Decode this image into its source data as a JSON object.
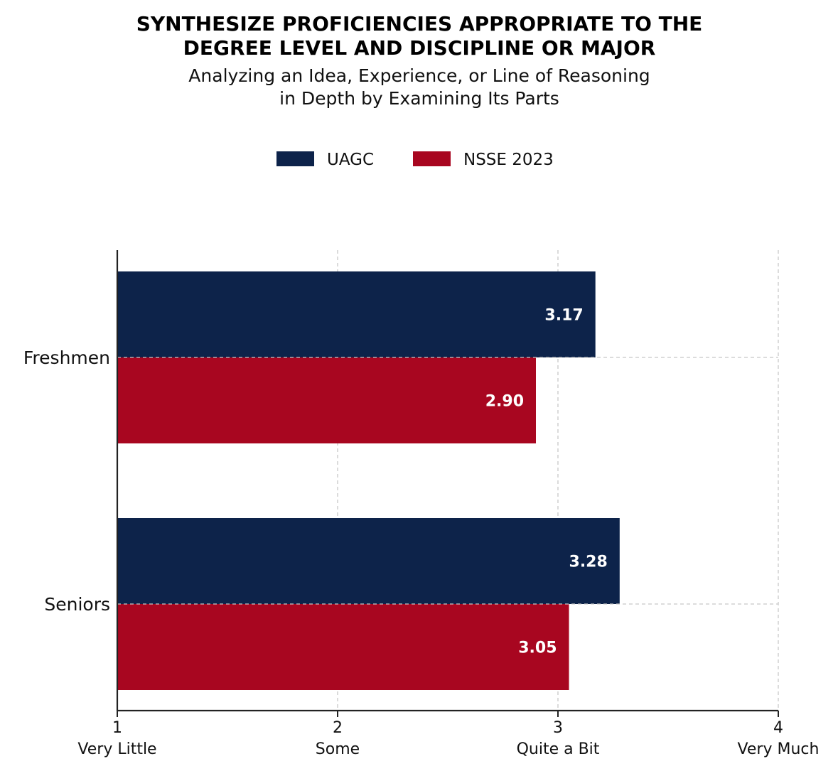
{
  "chart_data": {
    "type": "bar",
    "orientation": "horizontal",
    "title_lines": [
      "SYNTHESIZE PROFICIENCIES APPROPRIATE TO THE",
      "DEGREE LEVEL AND DISCIPLINE OR MAJOR"
    ],
    "subtitle_lines": [
      "Analyzing an Idea, Experience, or Line of Reasoning",
      "in Depth by Examining Its Parts"
    ],
    "categories": [
      "Freshmen",
      "Seniors"
    ],
    "series": [
      {
        "name": "UAGC",
        "color": "#0d234a",
        "values": [
          3.17,
          3.28
        ],
        "labels": [
          "3.17",
          "3.28"
        ]
      },
      {
        "name": "NSSE 2023",
        "color": "#a80620",
        "values": [
          2.9,
          3.05
        ],
        "labels": [
          "2.90",
          "3.05"
        ]
      }
    ],
    "xlim": [
      1,
      4
    ],
    "xticks": [
      {
        "value": 1,
        "label": "1",
        "sublabel": "Very Little"
      },
      {
        "value": 2,
        "label": "2",
        "sublabel": "Some"
      },
      {
        "value": 3,
        "label": "3",
        "sublabel": "Quite a Bit"
      },
      {
        "value": 4,
        "label": "4",
        "sublabel": "Very Much"
      }
    ],
    "grid": true,
    "legend_position": "top-center",
    "xlabel": "",
    "ylabel": ""
  }
}
